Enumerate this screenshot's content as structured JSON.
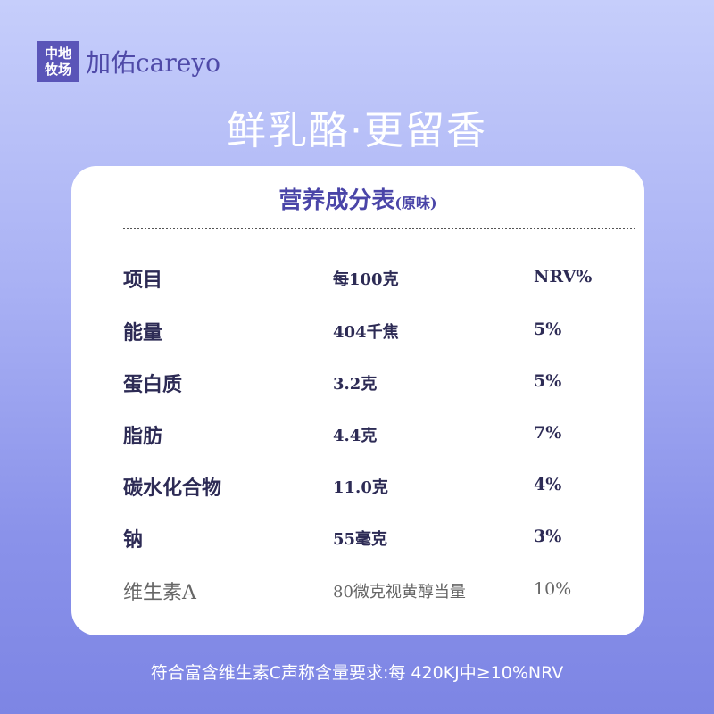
{
  "brand": {
    "badge": "中地牧场",
    "name": "加佑careyo"
  },
  "headline": "鲜乳酪·更留香",
  "table": {
    "title": "营养成分表",
    "subtitle": "(原味)",
    "header": [
      "项目",
      "每100克",
      "NRV%"
    ],
    "rows": [
      [
        "能量",
        "404千焦",
        "5%"
      ],
      [
        "蛋白质",
        "3.2克",
        "5%"
      ],
      [
        "脂肪",
        "4.4克",
        "7%"
      ],
      [
        "碳水化合物",
        "11.0克",
        "4%"
      ],
      [
        "钠",
        "55毫克",
        "3%"
      ],
      [
        "维生素A",
        "80微克视黄醇当量",
        "10%"
      ]
    ]
  },
  "footer": "符合富含维生素C声称含量要求:每 420KJ中≥10%NRV",
  "colors": {
    "accent": "#4a45a8",
    "text": "#2d2b55"
  }
}
